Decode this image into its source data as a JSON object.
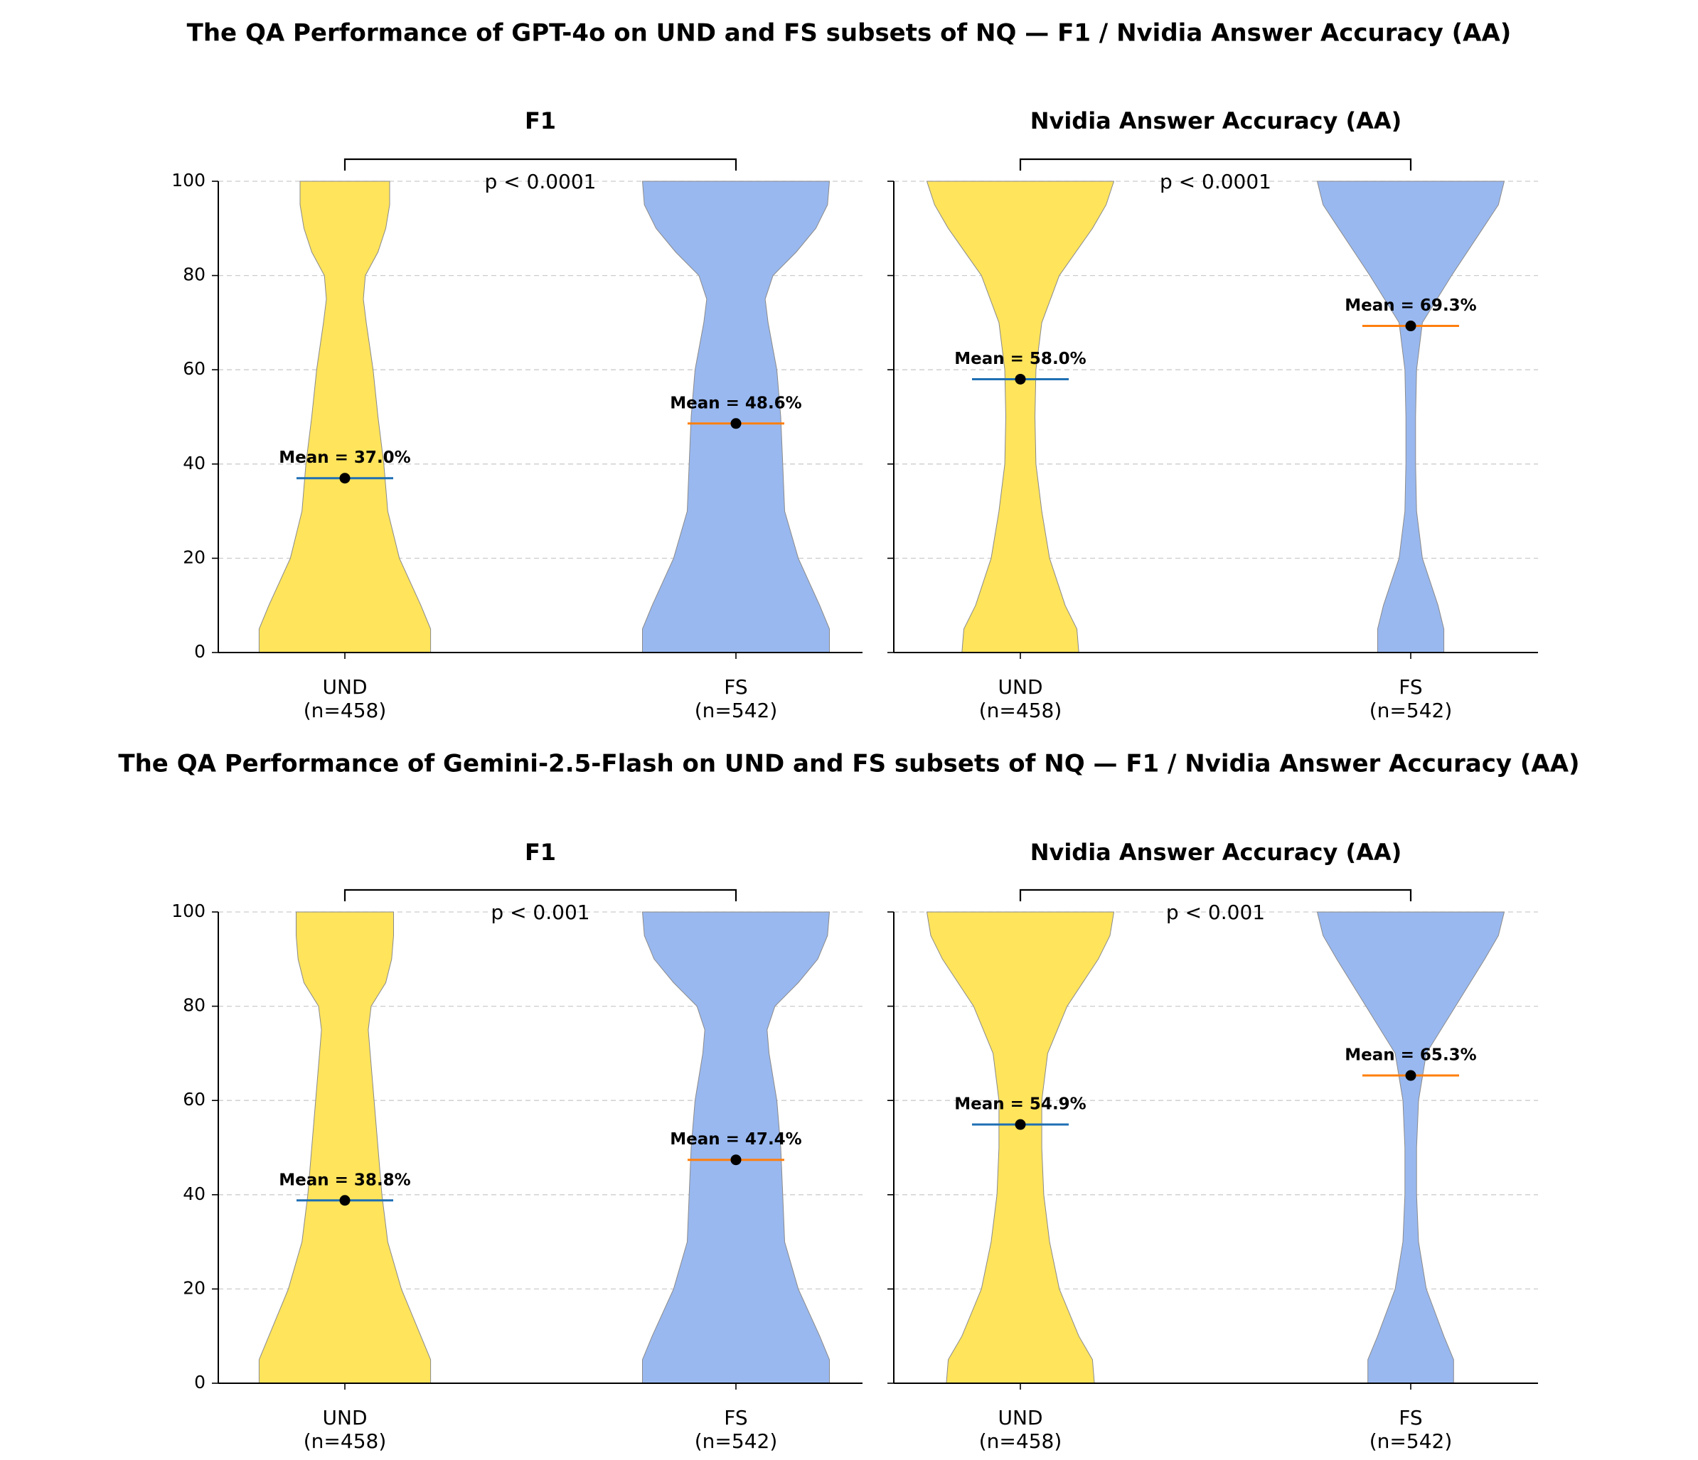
{
  "figure": {
    "colors": {
      "und_fill": "#FFE45C",
      "fs_fill": "#99B8F0",
      "und_mean_line": "#1F6FB4",
      "fs_mean_line": "#FF7F0E",
      "mean_point": "#000000",
      "grid": "#cccccc"
    }
  },
  "chart_data": [
    {
      "type": "violin",
      "title": "The QA Performance of GPT-4o on UND and FS subsets of NQ — F1 / Nvidia Answer Accuracy (AA)",
      "panels": [
        {
          "title": "F1",
          "ylim": [
            0,
            100
          ],
          "yticks": [
            "0",
            "20",
            "40",
            "60",
            "80",
            "100"
          ],
          "significance": "p < 0.0001",
          "groups": [
            {
              "key": "und",
              "label": "UND",
              "n_label": "(n=458)",
              "mean": 37.0,
              "mean_label": "Mean = 37.0%",
              "density": [
                [
                  0,
                  0.88
                ],
                [
                  5,
                  0.88
                ],
                [
                  10,
                  0.78
                ],
                [
                  20,
                  0.56
                ],
                [
                  30,
                  0.44
                ],
                [
                  40,
                  0.4
                ],
                [
                  50,
                  0.34
                ],
                [
                  60,
                  0.29
                ],
                [
                  70,
                  0.22
                ],
                [
                  75,
                  0.19
                ],
                [
                  80,
                  0.21
                ],
                [
                  85,
                  0.34
                ],
                [
                  90,
                  0.42
                ],
                [
                  95,
                  0.46
                ],
                [
                  100,
                  0.46
                ]
              ]
            },
            {
              "key": "fs",
              "label": "FS",
              "n_label": "(n=542)",
              "mean": 48.6,
              "mean_label": "Mean = 48.6%",
              "density": [
                [
                  0,
                  0.96
                ],
                [
                  5,
                  0.96
                ],
                [
                  10,
                  0.86
                ],
                [
                  20,
                  0.64
                ],
                [
                  30,
                  0.5
                ],
                [
                  40,
                  0.48
                ],
                [
                  50,
                  0.46
                ],
                [
                  60,
                  0.42
                ],
                [
                  70,
                  0.33
                ],
                [
                  75,
                  0.3
                ],
                [
                  80,
                  0.38
                ],
                [
                  85,
                  0.62
                ],
                [
                  90,
                  0.82
                ],
                [
                  95,
                  0.94
                ],
                [
                  100,
                  0.96
                ]
              ]
            }
          ]
        },
        {
          "title": "Nvidia Answer Accuracy (AA)",
          "ylim": [
            0,
            100
          ],
          "yticks": [
            "0",
            "20",
            "40",
            "60",
            "80",
            "100"
          ],
          "significance": "p < 0.0001",
          "groups": [
            {
              "key": "und",
              "label": "UND",
              "n_label": "(n=458)",
              "mean": 58.0,
              "mean_label": "Mean = 58.0%",
              "density": [
                [
                  0,
                  0.6
                ],
                [
                  5,
                  0.58
                ],
                [
                  10,
                  0.46
                ],
                [
                  20,
                  0.3
                ],
                [
                  30,
                  0.22
                ],
                [
                  40,
                  0.16
                ],
                [
                  50,
                  0.15
                ],
                [
                  60,
                  0.16
                ],
                [
                  70,
                  0.22
                ],
                [
                  80,
                  0.4
                ],
                [
                  90,
                  0.74
                ],
                [
                  95,
                  0.88
                ],
                [
                  100,
                  0.96
                ]
              ]
            },
            {
              "key": "fs",
              "label": "FS",
              "n_label": "(n=542)",
              "mean": 69.3,
              "mean_label": "Mean = 69.3%",
              "density": [
                [
                  0,
                  0.34
                ],
                [
                  5,
                  0.34
                ],
                [
                  10,
                  0.28
                ],
                [
                  20,
                  0.12
                ],
                [
                  30,
                  0.06
                ],
                [
                  40,
                  0.05
                ],
                [
                  50,
                  0.05
                ],
                [
                  60,
                  0.06
                ],
                [
                  70,
                  0.12
                ],
                [
                  80,
                  0.42
                ],
                [
                  90,
                  0.74
                ],
                [
                  95,
                  0.9
                ],
                [
                  100,
                  0.96
                ]
              ]
            }
          ]
        }
      ]
    },
    {
      "type": "violin",
      "title": "The QA Performance of Gemini-2.5-Flash on UND and FS subsets of NQ — F1 / Nvidia Answer Accuracy (AA)",
      "panels": [
        {
          "title": "F1",
          "ylim": [
            0,
            100
          ],
          "yticks": [
            "0",
            "20",
            "40",
            "60",
            "80",
            "100"
          ],
          "significance": "p < 0.001",
          "groups": [
            {
              "key": "und",
              "label": "UND",
              "n_label": "(n=458)",
              "mean": 38.8,
              "mean_label": "Mean = 38.8%",
              "density": [
                [
                  0,
                  0.88
                ],
                [
                  5,
                  0.88
                ],
                [
                  10,
                  0.78
                ],
                [
                  20,
                  0.58
                ],
                [
                  30,
                  0.44
                ],
                [
                  40,
                  0.38
                ],
                [
                  50,
                  0.34
                ],
                [
                  60,
                  0.3
                ],
                [
                  70,
                  0.26
                ],
                [
                  75,
                  0.24
                ],
                [
                  80,
                  0.27
                ],
                [
                  85,
                  0.42
                ],
                [
                  90,
                  0.48
                ],
                [
                  95,
                  0.5
                ],
                [
                  100,
                  0.5
                ]
              ]
            },
            {
              "key": "fs",
              "label": "FS",
              "n_label": "(n=542)",
              "mean": 47.4,
              "mean_label": "Mean = 47.4%",
              "density": [
                [
                  0,
                  0.96
                ],
                [
                  5,
                  0.96
                ],
                [
                  10,
                  0.86
                ],
                [
                  20,
                  0.64
                ],
                [
                  30,
                  0.5
                ],
                [
                  40,
                  0.48
                ],
                [
                  50,
                  0.46
                ],
                [
                  60,
                  0.42
                ],
                [
                  70,
                  0.34
                ],
                [
                  75,
                  0.32
                ],
                [
                  80,
                  0.4
                ],
                [
                  85,
                  0.64
                ],
                [
                  90,
                  0.84
                ],
                [
                  95,
                  0.94
                ],
                [
                  100,
                  0.96
                ]
              ]
            }
          ]
        },
        {
          "title": "Nvidia Answer Accuracy (AA)",
          "ylim": [
            0,
            100
          ],
          "yticks": [
            "0",
            "20",
            "40",
            "60",
            "80",
            "100"
          ],
          "significance": "p < 0.001",
          "groups": [
            {
              "key": "und",
              "label": "UND",
              "n_label": "(n=458)",
              "mean": 54.9,
              "mean_label": "Mean = 54.9%",
              "density": [
                [
                  0,
                  0.76
                ],
                [
                  5,
                  0.74
                ],
                [
                  10,
                  0.6
                ],
                [
                  20,
                  0.4
                ],
                [
                  30,
                  0.3
                ],
                [
                  40,
                  0.24
                ],
                [
                  50,
                  0.22
                ],
                [
                  60,
                  0.22
                ],
                [
                  70,
                  0.28
                ],
                [
                  80,
                  0.48
                ],
                [
                  90,
                  0.8
                ],
                [
                  95,
                  0.92
                ],
                [
                  100,
                  0.96
                ]
              ]
            },
            {
              "key": "fs",
              "label": "FS",
              "n_label": "(n=542)",
              "mean": 65.3,
              "mean_label": "Mean = 65.3%",
              "density": [
                [
                  0,
                  0.44
                ],
                [
                  5,
                  0.44
                ],
                [
                  10,
                  0.34
                ],
                [
                  20,
                  0.16
                ],
                [
                  30,
                  0.08
                ],
                [
                  40,
                  0.06
                ],
                [
                  50,
                  0.06
                ],
                [
                  60,
                  0.08
                ],
                [
                  70,
                  0.16
                ],
                [
                  80,
                  0.46
                ],
                [
                  90,
                  0.76
                ],
                [
                  95,
                  0.9
                ],
                [
                  100,
                  0.96
                ]
              ]
            }
          ]
        }
      ]
    }
  ]
}
